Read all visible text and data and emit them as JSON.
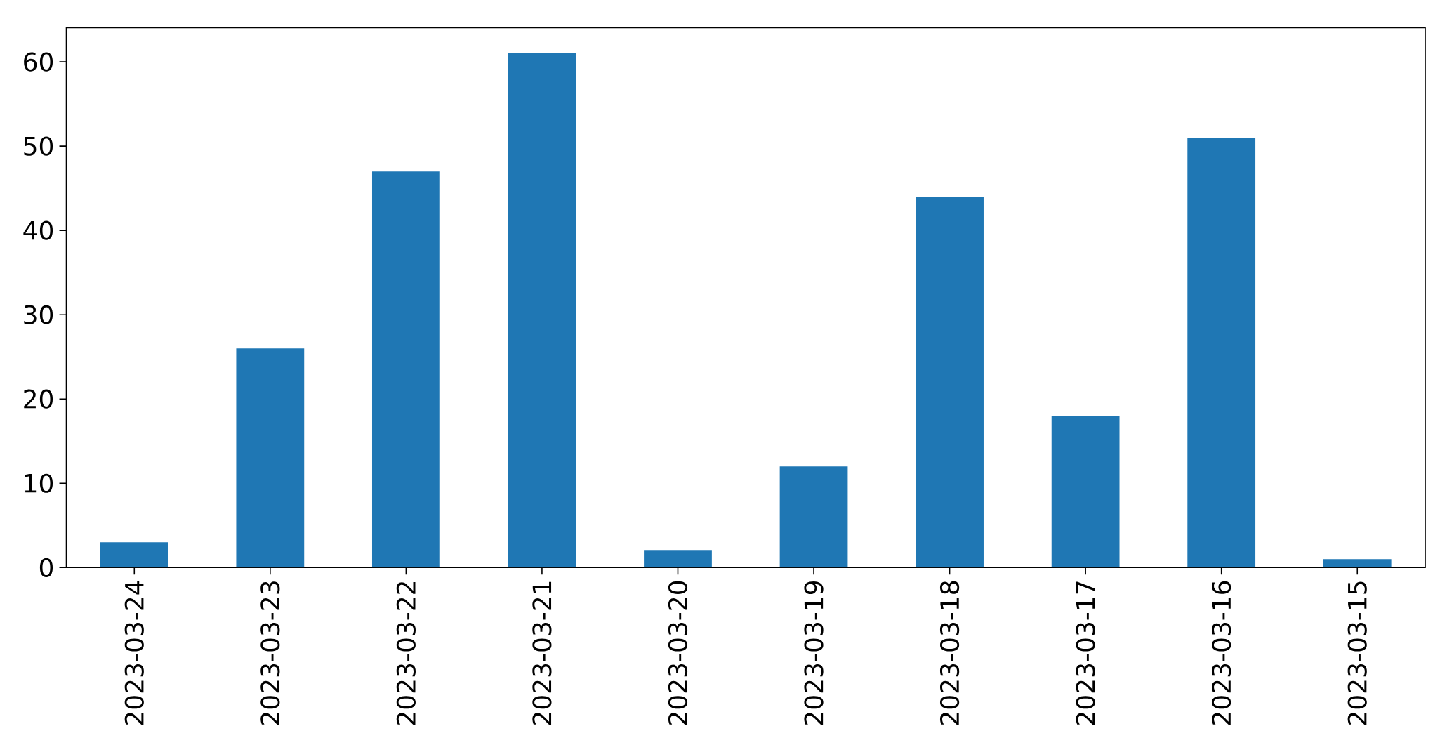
{
  "chart_data": {
    "type": "bar",
    "categories": [
      "2023-03-24",
      "2023-03-23",
      "2023-03-22",
      "2023-03-21",
      "2023-03-20",
      "2023-03-19",
      "2023-03-18",
      "2023-03-17",
      "2023-03-16",
      "2023-03-15"
    ],
    "values": [
      3,
      26,
      47,
      61,
      2,
      12,
      44,
      18,
      51,
      1
    ],
    "color": "#1f77b4",
    "ylim": [
      0,
      64.05
    ],
    "yticks": [
      0,
      10,
      20,
      30,
      40,
      50,
      60
    ]
  }
}
